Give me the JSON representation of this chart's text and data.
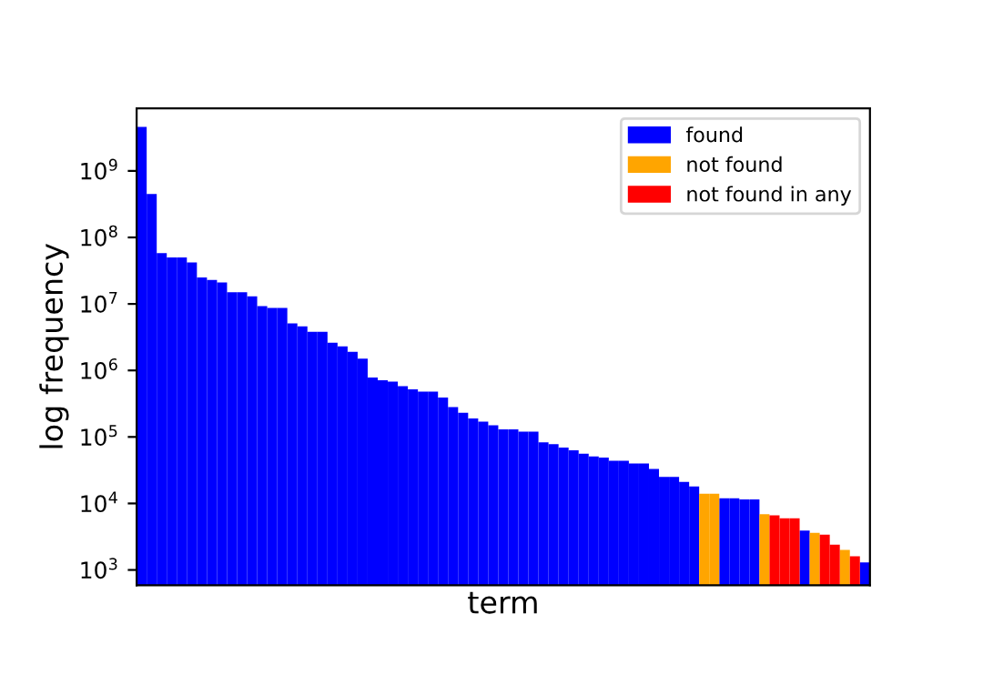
{
  "chart_data": {
    "type": "bar",
    "xlabel": "term",
    "ylabel": "log frequency",
    "log": "y",
    "legend": "top right",
    "tick_labels": "y",
    "categories": [
      null,
      null,
      null,
      null,
      null,
      null,
      null,
      null,
      null,
      null,
      null,
      null,
      null,
      null,
      null,
      null,
      null,
      null,
      null,
      null,
      null,
      null,
      null,
      null,
      null,
      null,
      null,
      null,
      null,
      null,
      null,
      null,
      null,
      null,
      null,
      null,
      null,
      null,
      null,
      null,
      null,
      null,
      null,
      null,
      null,
      null,
      null,
      null,
      null,
      null,
      null,
      null,
      null,
      null,
      null,
      null,
      null,
      null,
      null,
      null,
      null,
      null,
      null,
      null,
      null,
      null,
      null,
      null,
      null,
      null,
      null,
      null,
      null
    ],
    "ylim": [
      590,
      8700000000
    ],
    "yticks": [
      {
        "value": 1000,
        "label": "10$^{3}$"
      },
      {
        "value": 10000,
        "label": "10$^{4}$"
      },
      {
        "value": 100000,
        "label": "10$^{5}$"
      },
      {
        "value": 1000000,
        "label": "10$^{6}$"
      },
      {
        "value": 10000000,
        "label": "10$^{7}$"
      },
      {
        "value": 100000000,
        "label": "10$^{8}$"
      },
      {
        "value": 1000000000,
        "label": "10$^{9}$"
      }
    ],
    "series": [
      {
        "name": "found",
        "color": "#0000ff",
        "values": [
          4600000000,
          450000000,
          58000000,
          50000000,
          50000000,
          42000000,
          25000000,
          23000000,
          21000000,
          15000000,
          15000000,
          13000000,
          9300000,
          8700000,
          8700000,
          5100000,
          4600000,
          3800000,
          3800000,
          2600000,
          2300000,
          1900000,
          1500000,
          780000,
          710000,
          680000,
          580000,
          520000,
          480000,
          480000,
          390000,
          280000,
          230000,
          190000,
          170000,
          150000,
          130000,
          130000,
          120000,
          120000,
          83000,
          78000,
          69000,
          63000,
          56000,
          51000,
          49000,
          44000,
          44000,
          40000,
          40000,
          33000,
          25000,
          25000,
          21000,
          18000,
          null,
          null,
          12000,
          12000,
          11500,
          11500,
          null,
          null,
          null,
          null,
          3900,
          null,
          null,
          null,
          null,
          null,
          1300
        ]
      },
      {
        "name": "not found",
        "color": "#ffa500",
        "values": [
          null,
          null,
          null,
          null,
          null,
          null,
          null,
          null,
          null,
          null,
          null,
          null,
          null,
          null,
          null,
          null,
          null,
          null,
          null,
          null,
          null,
          null,
          null,
          null,
          null,
          null,
          null,
          null,
          null,
          null,
          null,
          null,
          null,
          null,
          null,
          null,
          null,
          null,
          null,
          null,
          null,
          null,
          null,
          null,
          null,
          null,
          null,
          null,
          null,
          null,
          null,
          null,
          null,
          null,
          null,
          null,
          14000,
          14000,
          null,
          null,
          null,
          null,
          6900,
          null,
          null,
          null,
          null,
          3600,
          null,
          null,
          2000,
          null,
          null
        ]
      },
      {
        "name": "not found in any",
        "color": "#ff0000",
        "values": [
          null,
          null,
          null,
          null,
          null,
          null,
          null,
          null,
          null,
          null,
          null,
          null,
          null,
          null,
          null,
          null,
          null,
          null,
          null,
          null,
          null,
          null,
          null,
          null,
          null,
          null,
          null,
          null,
          null,
          null,
          null,
          null,
          null,
          null,
          null,
          null,
          null,
          null,
          null,
          null,
          null,
          null,
          null,
          null,
          null,
          null,
          null,
          null,
          null,
          null,
          null,
          null,
          null,
          null,
          null,
          null,
          null,
          null,
          null,
          null,
          null,
          null,
          null,
          6600,
          6000,
          6000,
          null,
          null,
          3400,
          2400,
          null,
          1600,
          null
        ]
      }
    ]
  }
}
